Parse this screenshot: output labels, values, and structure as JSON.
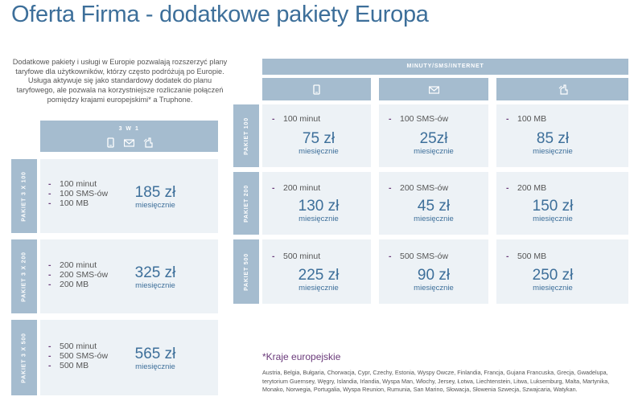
{
  "title": "Oferta Firma - dodatkowe pakiety Europa",
  "intro": "Dodatkowe pakiety i usługi w Europie pozwalają rozszerzyć plany taryfowe dla użytkowników, którzy często podróżują po Europie. Usługa aktywuje się jako standardowy dodatek do planu taryfowego, ale pozwala na korzystniejsze rozliczanie połączeń pomiędzy krajami europejskimi* a Truphone.",
  "bundle": {
    "header": "3 W 1",
    "icons": [
      "phone-icon",
      "envelope-icon",
      "data-hand-icon"
    ],
    "packages": [
      {
        "label": "PAKIET 3 X 100",
        "items": [
          "100 minut",
          "100 SMS-ów",
          "100 MB"
        ],
        "price": "185 zł",
        "period": "miesięcznie"
      },
      {
        "label": "PAKIET 3 X 200",
        "items": [
          "200 minut",
          "200 SMS-ów",
          "200 MB"
        ],
        "price": "325 zł",
        "period": "miesięcznie"
      },
      {
        "label": "PAKIET 3 X 500",
        "items": [
          "500 minut",
          "500 SMS-ów",
          "500 MB"
        ],
        "price": "565 zł",
        "period": "miesięcznie"
      }
    ]
  },
  "matrix": {
    "header": "MINUTY/SMS/INTERNET",
    "columns": [
      "phone-icon",
      "envelope-icon",
      "data-hand-icon"
    ],
    "rows": [
      {
        "label": "PAKIET 100",
        "cells": [
          {
            "item": "100 minut",
            "price": "75 zł",
            "period": "miesięcznie"
          },
          {
            "item": "100 SMS-ów",
            "price": "25zł",
            "period": "miesięcznie"
          },
          {
            "item": "100 MB",
            "price": "85 zł",
            "period": "miesięcznie"
          }
        ]
      },
      {
        "label": "PAKIET 200",
        "cells": [
          {
            "item": "200 minut",
            "price": "130 zł",
            "period": "miesięcznie"
          },
          {
            "item": "200 SMS-ów",
            "price": "45 zł",
            "period": "miesięcznie"
          },
          {
            "item": "200 MB",
            "price": "150 zł",
            "period": "miesięcznie"
          }
        ]
      },
      {
        "label": "PAKIET 500",
        "cells": [
          {
            "item": "500 minut",
            "price": "225 zł",
            "period": "miesięcznie"
          },
          {
            "item": "500 SMS-ów",
            "price": "90 zł",
            "period": "miesięcznie"
          },
          {
            "item": "500 MB",
            "price": "250 zł",
            "period": "miesięcznie"
          }
        ]
      }
    ]
  },
  "footnote": {
    "title": "*Kraje europejskie",
    "text": "Austria, Belgia, Bułgaria, Chorwacja, Cypr, Czechy, Estonia, Wyspy Owcze, Finlandia, Francja, Gujana Francuska, Grecja, Gwadelupa, terytorium Guernsey, Węgry, Islandia, Irlandia, Wyspa Man, Włochy, Jersey, Łotwa, Liechtenstein, Litwa, Luksemburg, Malta, Martynika, Monako, Norwegia, Portugalia, Wyspa Reunion, Rumunia, San Marino, Słowacja, Słowenia Szwecja, Szwajcaria, Watykan."
  },
  "dash": "-",
  "colors": {
    "accent": "#3d6f9a",
    "header_bg": "#a5bccf",
    "card_bg": "#edf2f6",
    "bullet": "#6a3a7a"
  }
}
